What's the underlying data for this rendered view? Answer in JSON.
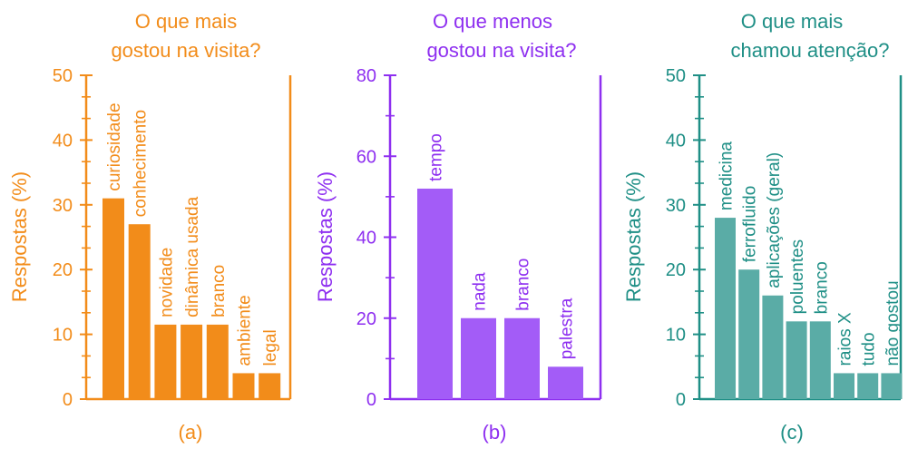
{
  "chart_data": [
    {
      "type": "bar",
      "title": "O que mais gostou na visita?",
      "title_lines": [
        "O que mais",
        "gostou na visita?"
      ],
      "ylabel": "Respostas (%)",
      "caption": "(a)",
      "color": "#f28c1a",
      "bar_color": "#f28c1a",
      "ylim": [
        0,
        50
      ],
      "yticks": [
        0,
        10,
        20,
        30,
        40,
        50
      ],
      "categories": [
        "curiosidade",
        "conhecimento",
        "novidade",
        "dinâmica usada",
        "branco",
        "ambiente",
        "legal"
      ],
      "values": [
        31,
        27,
        11.5,
        11.5,
        11.5,
        4,
        4
      ]
    },
    {
      "type": "bar",
      "title": "O que menos gostou na visita?",
      "title_lines": [
        "O que menos",
        "gostou na visita?"
      ],
      "ylabel": "Respostas (%)",
      "caption": "(b)",
      "color": "#8e2ff0",
      "bar_color": "#a35cf7",
      "ylim": [
        0,
        80
      ],
      "yticks": [
        0,
        20,
        40,
        60,
        80
      ],
      "categories": [
        "tempo",
        "nada",
        "branco",
        "palestra"
      ],
      "values": [
        52,
        20,
        20,
        8
      ]
    },
    {
      "type": "bar",
      "title": "O que mais chamou atenção?",
      "title_lines": [
        "O que mais",
        "chamou atenção?"
      ],
      "ylabel": "Respostas (%)",
      "caption": "(c)",
      "color": "#1f8f86",
      "bar_color": "#5aaca6",
      "ylim": [
        0,
        50
      ],
      "yticks": [
        0,
        10,
        20,
        30,
        40,
        50
      ],
      "categories": [
        "medicina",
        "ferrofluido",
        "aplicações (geral)",
        "poluentes",
        "branco",
        "raios X",
        "tudo",
        "não gostou"
      ],
      "values": [
        28,
        20,
        16,
        12,
        12,
        4,
        4,
        4
      ]
    }
  ]
}
